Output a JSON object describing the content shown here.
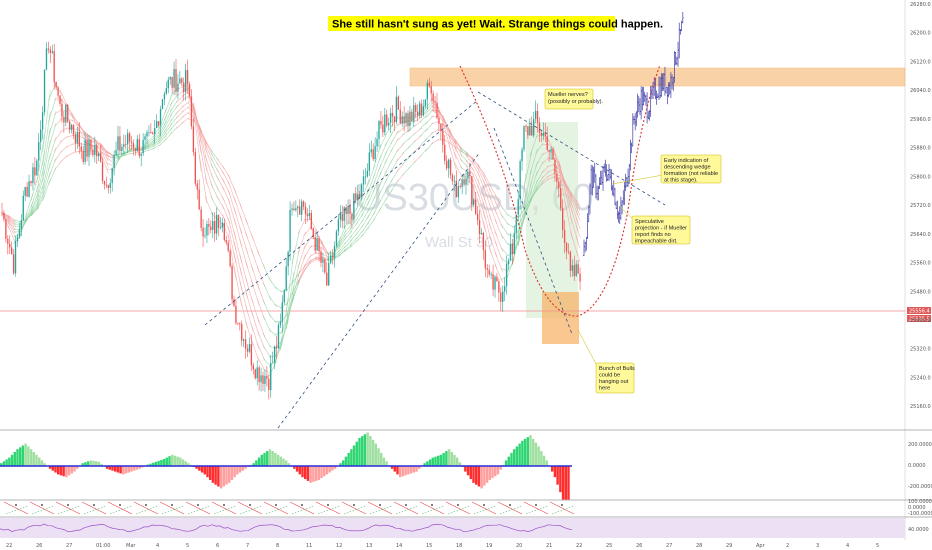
{
  "chart_data": {
    "type": "candlestick",
    "title": "She still hasn't sung as yet! Wait. Strange things could happen.",
    "watermark": {
      "symbol": "US30USD, 60",
      "name": "Wall St 30"
    },
    "ylim": [
      25100,
      26280
    ],
    "x_ticks": [
      "22",
      "26",
      "27",
      "01:00",
      "Mar",
      "4",
      "5",
      "6",
      "7",
      "8",
      "11",
      "12",
      "13",
      "14",
      "15",
      "18",
      "19",
      "20",
      "21",
      "22",
      "25",
      "26",
      "27",
      "28",
      "29",
      "Apr",
      "2",
      "3",
      "4",
      "5"
    ],
    "y_ticks": [
      "26280.0",
      "26200.0",
      "26120.0",
      "26040.0",
      "25960.0",
      "25880.0",
      "25800.0",
      "25720.0",
      "25640.0",
      "25560.0",
      "25480.0",
      "25400.0",
      "25320.0",
      "25240.0",
      "25160.0"
    ],
    "price_tags": [
      "25556.4",
      "25535.5"
    ],
    "close_path": [
      25700,
      25560,
      25760,
      25840,
      26180,
      25990,
      25940,
      25870,
      25880,
      25780,
      25880,
      25900,
      25880,
      25900,
      26050,
      26070,
      26060,
      25680,
      25640,
      25700,
      25440,
      25340,
      25260,
      25240,
      25380,
      25740,
      25720,
      25620,
      25500,
      25660,
      25700,
      25760,
      25880,
      25960,
      25990,
      25960,
      25980,
      26060,
      25900,
      25760,
      25820,
      25690,
      25500,
      25480,
      25600,
      25920,
      25950,
      25900,
      25760,
      25520,
      25540
    ],
    "projection_path": [
      25580,
      25800,
      25760,
      25820,
      25780,
      25680,
      25800,
      25960,
      26020,
      25990,
      26040,
      26060,
      26050,
      26150,
      26240
    ],
    "annotations": [
      {
        "lines": [
          "Mueller nerves?",
          "(possibly or probably)."
        ]
      },
      {
        "lines": [
          "Early indication of",
          "descending wedge",
          "formation (not reliable",
          "at this stage)."
        ]
      },
      {
        "lines": [
          "Speculative",
          "projection - if Mueller",
          "report finds no",
          "impeachable dirt."
        ]
      },
      {
        "lines": [
          "Bunch of Bulls",
          "could be",
          "hanging out",
          "here"
        ]
      }
    ],
    "osc1_ticks": [
      "200.0000",
      "0.0000",
      "-200.0000"
    ],
    "osc2_ticks": [
      "100.0000",
      "0.0000",
      "-100.0000"
    ],
    "osc3_ticks": [
      "40.0000"
    ],
    "osc1_values": [
      10,
      30,
      60,
      80,
      50,
      20,
      -10,
      -30,
      -40,
      -20,
      10,
      20,
      15,
      -10,
      -20,
      -30,
      -20,
      -10,
      5,
      15,
      25,
      40,
      30,
      10,
      -10,
      -30,
      -60,
      -80,
      -60,
      -30,
      -10,
      10,
      40,
      60,
      40,
      20,
      -10,
      -40,
      -60,
      -50,
      -30,
      -10,
      20,
      60,
      100,
      120,
      80,
      30,
      -10,
      -40,
      -30,
      -20,
      10,
      30,
      40,
      60,
      30,
      -20,
      -60,
      -80,
      -50,
      -30,
      20,
      60,
      90,
      110,
      70,
      20,
      -40,
      -120
    ]
  },
  "colors": {
    "up": "#26a69a",
    "down": "#ef5350",
    "projection": "#3c3ca8",
    "zone": "#f5a623",
    "green_zone": "#b9e3b5",
    "ema_green": "#8fd19e",
    "ema_red": "#f2a0a0"
  }
}
